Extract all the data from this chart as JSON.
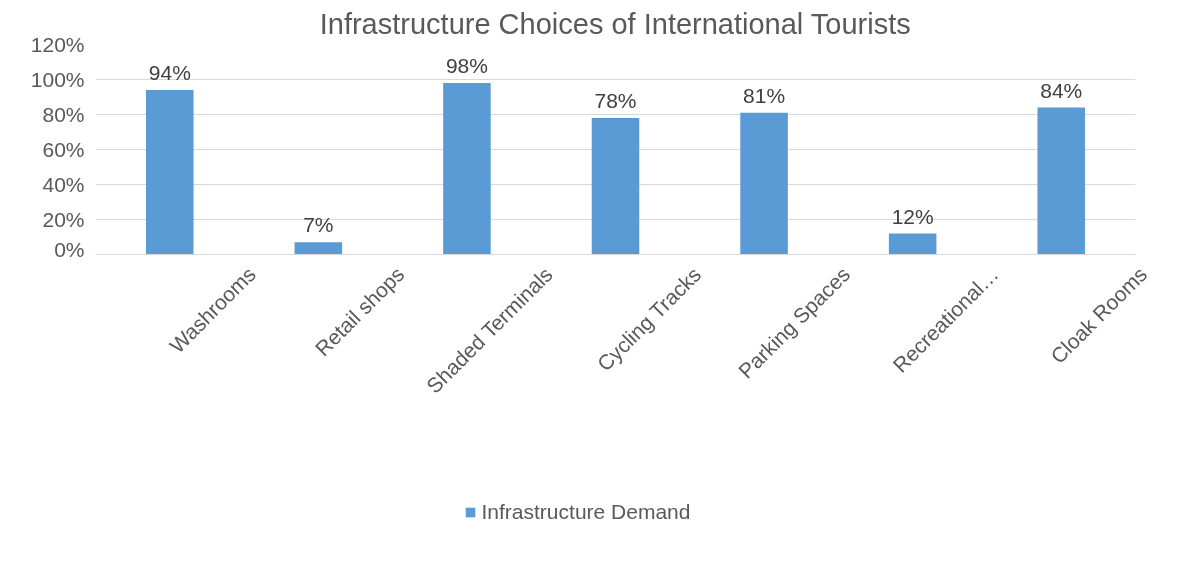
{
  "chart_data": {
    "type": "bar",
    "title": "Infrastructure Choices of International Tourists",
    "categories": [
      "Washrooms",
      "Retail shops",
      "Shaded Terminals",
      "Cycling Tracks",
      "Parking Spaces",
      "Recreational…",
      "Cloak Rooms"
    ],
    "series": [
      {
        "name": "Infrastructure Demand",
        "color": "#5b9bd5",
        "values": [
          94,
          7,
          98,
          78,
          81,
          12,
          84
        ],
        "value_labels": [
          "94%",
          "7%",
          "98%",
          "78%",
          "81%",
          "12%",
          "84%"
        ]
      }
    ],
    "ylim": [
      0,
      120
    ],
    "yticks": [
      {
        "value": 0,
        "label": "0%"
      },
      {
        "value": 20,
        "label": "20%"
      },
      {
        "value": 40,
        "label": "40%"
      },
      {
        "value": 60,
        "label": "60%"
      },
      {
        "value": 80,
        "label": "80%"
      },
      {
        "value": 100,
        "label": "100%"
      },
      {
        "value": 120,
        "label": "120%"
      }
    ],
    "grid": "y",
    "legend": "bottom"
  }
}
